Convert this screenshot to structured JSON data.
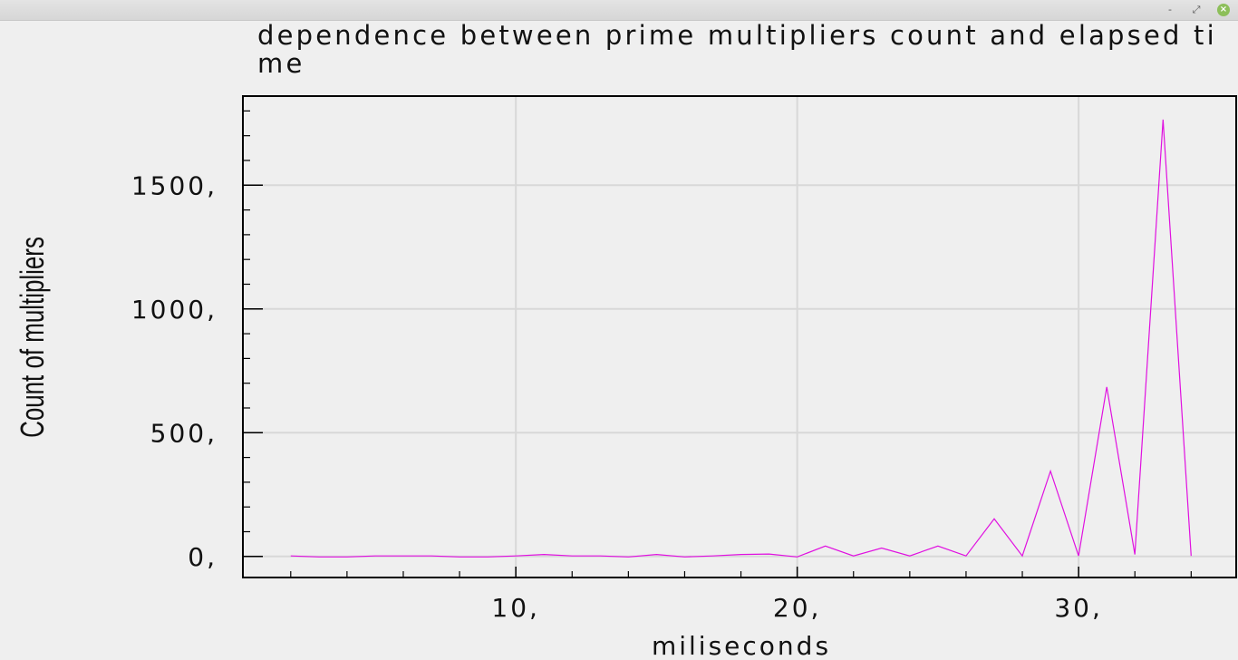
{
  "window": {
    "minimize_glyph": "-",
    "maximize_glyph": "⤢",
    "close_glyph": "×"
  },
  "chart_data": {
    "type": "line",
    "title": "dependence between prime multipliers count and elapsed time",
    "xlabel": "miliseconds",
    "ylabel": "Count of multipliers",
    "xlim": [
      0.3,
      35.6
    ],
    "ylim": [
      -85,
      1860
    ],
    "x_ticks": [
      10,
      20,
      30
    ],
    "x_tick_labels": [
      "10,",
      "20,",
      "30,"
    ],
    "y_ticks": [
      0,
      500,
      1000,
      1500
    ],
    "y_tick_labels": [
      "0,",
      "500,",
      "1000,",
      "1500,"
    ],
    "grid": true,
    "line_color": "#e010e0",
    "series": [
      {
        "x": [
          2,
          3,
          4,
          5,
          6,
          7,
          8,
          9,
          10,
          11,
          12,
          13,
          14,
          15,
          16,
          17,
          18,
          19,
          20,
          21,
          22,
          23,
          24,
          25,
          26,
          27,
          28,
          29,
          30,
          31,
          32,
          33,
          34
        ],
        "values": [
          2,
          -2,
          -2,
          2,
          2,
          2,
          -2,
          -2,
          2,
          8,
          2,
          2,
          -2,
          8,
          -2,
          2,
          8,
          10,
          -2,
          42,
          2,
          34,
          2,
          42,
          2,
          152,
          2,
          345,
          2,
          685,
          8,
          1765,
          2
        ]
      }
    ]
  }
}
